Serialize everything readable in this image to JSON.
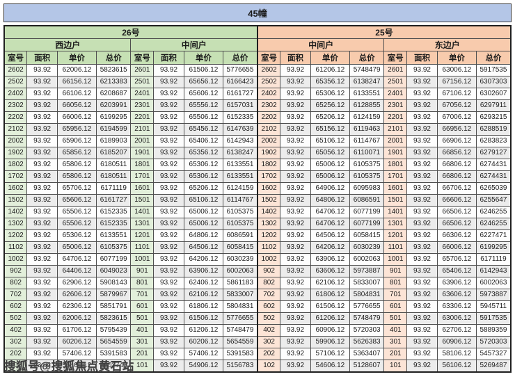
{
  "title": "45幢",
  "watermark": "搜狐号@搜狐焦点黄石站",
  "colors": {
    "title_bar": "#b4c6e7",
    "building_26_header": "#c6e0b4",
    "building_25_header": "#f8cbad",
    "room_cell_26": "#e2efda",
    "room_cell_25": "#fce4d6",
    "stripe_gray": "#ececec"
  },
  "table": {
    "sections": [
      {
        "building": "26号",
        "units": [
          "西边户",
          "中间户"
        ]
      },
      {
        "building": "25号",
        "units": [
          "中间户",
          "东边户"
        ]
      }
    ],
    "column_headers": [
      "室号",
      "面积",
      "单价",
      "总价"
    ],
    "rows": [
      [
        "2602",
        "93.92",
        "62006.12",
        "5823615",
        "2601",
        "93.92",
        "61506.12",
        "5776655",
        "2602",
        "93.92",
        "61206.12",
        "5748479",
        "2601",
        "93.92",
        "63006.12",
        "5917535"
      ],
      [
        "2502",
        "93.92",
        "66156.12",
        "6213383",
        "2501",
        "93.92",
        "65656.12",
        "6166423",
        "2502",
        "93.92",
        "65356.12",
        "6138247",
        "2501",
        "93.92",
        "67156.12",
        "6307303"
      ],
      [
        "2402",
        "93.92",
        "66106.12",
        "6208687",
        "2401",
        "93.92",
        "65606.12",
        "6161727",
        "2402",
        "93.92",
        "65306.12",
        "6133551",
        "2401",
        "93.92",
        "67106.12",
        "6302607"
      ],
      [
        "2302",
        "93.92",
        "66056.12",
        "6203991",
        "2301",
        "93.92",
        "65556.12",
        "6157031",
        "2302",
        "93.92",
        "65256.12",
        "6128855",
        "2301",
        "93.92",
        "67056.12",
        "6297911"
      ],
      [
        "2202",
        "93.92",
        "66006.12",
        "6199295",
        "2201",
        "93.92",
        "65506.12",
        "6152335",
        "2202",
        "93.92",
        "65206.12",
        "6124159",
        "2201",
        "93.92",
        "67006.12",
        "6293215"
      ],
      [
        "2102",
        "93.92",
        "65956.12",
        "6194599",
        "2101",
        "93.92",
        "65456.12",
        "6147639",
        "2102",
        "93.92",
        "65156.12",
        "6119463",
        "2101",
        "93.92",
        "66956.12",
        "6288519"
      ],
      [
        "2002",
        "93.92",
        "65906.12",
        "6189903",
        "2001",
        "93.92",
        "65406.12",
        "6142943",
        "2002",
        "93.92",
        "65106.12",
        "6114767",
        "2001",
        "93.92",
        "66906.12",
        "6283823"
      ],
      [
        "1902",
        "93.92",
        "65856.12",
        "6185207",
        "1901",
        "93.92",
        "65356.12",
        "6138247",
        "1902",
        "93.92",
        "65056.12",
        "6110071",
        "1901",
        "93.92",
        "66856.12",
        "6279127"
      ],
      [
        "1802",
        "93.92",
        "65806.12",
        "6180511",
        "1801",
        "93.92",
        "65306.12",
        "6133551",
        "1802",
        "93.92",
        "65006.12",
        "6105375",
        "1801",
        "93.92",
        "66806.12",
        "6274431"
      ],
      [
        "1702",
        "93.92",
        "65806.12",
        "6180511",
        "1701",
        "93.92",
        "65306.12",
        "6133551",
        "1702",
        "93.92",
        "65006.12",
        "6105375",
        "1701",
        "93.92",
        "66806.12",
        "6274431"
      ],
      [
        "1602",
        "93.92",
        "65706.12",
        "6171119",
        "1601",
        "93.92",
        "65206.12",
        "6124159",
        "1602",
        "93.92",
        "64906.12",
        "6095983",
        "1601",
        "93.92",
        "66706.12",
        "6265039"
      ],
      [
        "1502",
        "93.92",
        "65606.12",
        "6161727",
        "1501",
        "93.92",
        "65106.12",
        "6114767",
        "1502",
        "93.92",
        "64806.12",
        "6086591",
        "1501",
        "93.92",
        "66606.12",
        "6255647"
      ],
      [
        "1402",
        "93.92",
        "65506.12",
        "6152335",
        "1401",
        "93.92",
        "65006.12",
        "6105375",
        "1402",
        "93.92",
        "64706.12",
        "6077199",
        "1401",
        "93.92",
        "66506.12",
        "6246255"
      ],
      [
        "1302",
        "93.92",
        "65506.12",
        "6152335",
        "1301",
        "93.92",
        "65006.12",
        "6105375",
        "1302",
        "93.92",
        "64706.12",
        "6077199",
        "1301",
        "93.92",
        "66506.12",
        "6246255"
      ],
      [
        "1202",
        "93.92",
        "65306.12",
        "6133551",
        "1201",
        "93.92",
        "64806.12",
        "6086591",
        "1202",
        "93.92",
        "64506.12",
        "6058415",
        "1201",
        "93.92",
        "66306.12",
        "6227471"
      ],
      [
        "1102",
        "93.92",
        "65006.12",
        "6105375",
        "1101",
        "93.92",
        "64506.12",
        "6058415",
        "1102",
        "93.92",
        "64206.12",
        "6030239",
        "1101",
        "93.92",
        "66006.12",
        "6199295"
      ],
      [
        "1002",
        "93.92",
        "64706.12",
        "6077199",
        "1001",
        "93.92",
        "64206.12",
        "6030239",
        "1002",
        "93.92",
        "63906.12",
        "6002063",
        "1001",
        "93.92",
        "65706.12",
        "6171119"
      ],
      [
        "902",
        "93.92",
        "64406.12",
        "6049023",
        "901",
        "93.92",
        "63906.12",
        "6002063",
        "902",
        "93.92",
        "63606.12",
        "5973887",
        "901",
        "93.92",
        "65406.12",
        "6142943"
      ],
      [
        "802",
        "93.92",
        "62906.12",
        "5908143",
        "801",
        "93.92",
        "62406.12",
        "5861183",
        "802",
        "93.92",
        "62106.12",
        "5833007",
        "801",
        "93.92",
        "63906.12",
        "6002063"
      ],
      [
        "702",
        "93.92",
        "62606.12",
        "5879967",
        "701",
        "93.92",
        "62106.12",
        "5833007",
        "702",
        "93.92",
        "61806.12",
        "5804831",
        "701",
        "93.92",
        "63606.12",
        "5973887"
      ],
      [
        "602",
        "93.92",
        "62306.12",
        "5851791",
        "601",
        "93.92",
        "61806.12",
        "5804831",
        "602",
        "93.92",
        "61506.12",
        "5776655",
        "601",
        "93.92",
        "63306.12",
        "5945711"
      ],
      [
        "502",
        "93.92",
        "62006.12",
        "5823615",
        "501",
        "93.92",
        "61506.12",
        "5776655",
        "502",
        "93.92",
        "61206.12",
        "5748479",
        "501",
        "93.92",
        "63006.12",
        "5917535"
      ],
      [
        "402",
        "93.92",
        "61706.12",
        "5795439",
        "401",
        "93.92",
        "61206.12",
        "5748479",
        "402",
        "93.92",
        "60906.12",
        "5720303",
        "401",
        "93.92",
        "62706.12",
        "5889359"
      ],
      [
        "302",
        "93.92",
        "60206.12",
        "5654559",
        "301",
        "93.92",
        "60206.12",
        "5654559",
        "302",
        "93.92",
        "59906.12",
        "5626383",
        "301",
        "93.92",
        "60906.12",
        "5720303"
      ],
      [
        "202",
        "93.92",
        "57406.12",
        "5391583",
        "201",
        "93.92",
        "57406.12",
        "5391583",
        "202",
        "93.92",
        "57106.12",
        "5363407",
        "201",
        "93.92",
        "58106.12",
        "5457327"
      ],
      [
        "102",
        "93.92",
        "55406.12",
        "5203743",
        "101",
        "93.92",
        "54906.12",
        "5156783",
        "102",
        "93.92",
        "54606.12",
        "5128607",
        "101",
        "93.92",
        "56106.12",
        "5269487"
      ]
    ]
  }
}
